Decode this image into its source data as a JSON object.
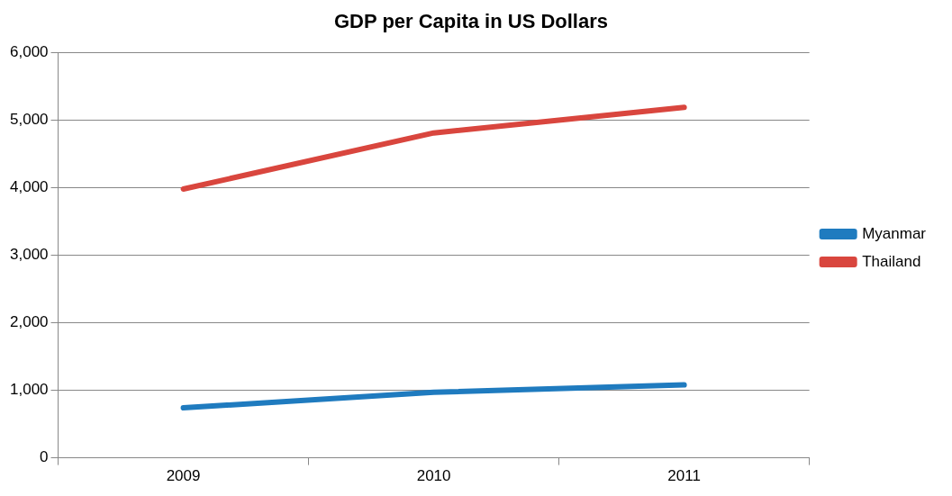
{
  "chart_data": {
    "type": "line",
    "title": "GDP per Capita in US Dollars",
    "categories": [
      "2009",
      "2010",
      "2011"
    ],
    "series": [
      {
        "name": "Myanmar",
        "color": "#1f7bbf",
        "values": [
          740,
          970,
          1080
        ]
      },
      {
        "name": "Thailand",
        "color": "#d9463e",
        "values": [
          3980,
          4810,
          5190
        ]
      }
    ],
    "ylim": [
      0,
      6000
    ],
    "yticks": [
      0,
      {
        "value": 1000,
        "label": "1,000"
      },
      {
        "value": 2000,
        "label": "2,000"
      },
      {
        "value": 3000,
        "label": "3,000"
      },
      {
        "value": 4000,
        "label": "4,000"
      },
      {
        "value": 5000,
        "label": "5,000"
      },
      {
        "value": 6000,
        "label": "6,000"
      }
    ],
    "grid": "y",
    "legend": "right",
    "marker": "none",
    "line_style": "solid"
  }
}
